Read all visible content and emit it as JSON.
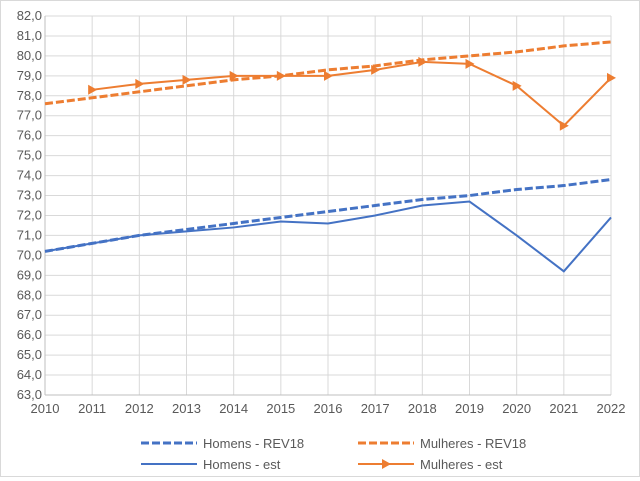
{
  "chart_data": {
    "type": "line",
    "title": "",
    "xlabel": "",
    "ylabel": "",
    "x": [
      2010,
      2011,
      2012,
      2013,
      2014,
      2015,
      2016,
      2017,
      2018,
      2019,
      2020,
      2021,
      2022
    ],
    "x_tick_labels": [
      "2010",
      "2011",
      "2012",
      "2013",
      "2014",
      "2015",
      "2016",
      "2017",
      "2018",
      "2019",
      "2020",
      "2021",
      "2022"
    ],
    "ylim": [
      63,
      82
    ],
    "y_tick_labels": [
      "63,0",
      "64,0",
      "65,0",
      "66,0",
      "67,0",
      "68,0",
      "69,0",
      "70,0",
      "71,0",
      "72,0",
      "73,0",
      "74,0",
      "75,0",
      "76,0",
      "77,0",
      "78,0",
      "79,0",
      "80,0",
      "81,0",
      "82,0"
    ],
    "grid": true,
    "legend_position": "bottom",
    "series": [
      {
        "name": "Homens - REV18",
        "color": "#4472c4",
        "style": "dashed",
        "marker": "none",
        "values": [
          70.2,
          70.6,
          71.0,
          71.3,
          71.6,
          71.9,
          72.2,
          72.5,
          72.8,
          73.0,
          73.3,
          73.5,
          73.8
        ]
      },
      {
        "name": "Mulheres - REV18",
        "color": "#ed7d31",
        "style": "dashed",
        "marker": "none",
        "values": [
          77.6,
          77.9,
          78.2,
          78.5,
          78.8,
          79.0,
          79.3,
          79.5,
          79.8,
          80.0,
          80.2,
          80.5,
          80.7
        ]
      },
      {
        "name": "Homens - est",
        "color": "#4472c4",
        "style": "solid",
        "marker": "none",
        "values": [
          70.2,
          70.6,
          71.0,
          71.2,
          71.4,
          71.7,
          71.6,
          72.0,
          72.5,
          72.7,
          71.0,
          69.2,
          71.9
        ]
      },
      {
        "name": "Mulheres - est",
        "color": "#ed7d31",
        "style": "solid",
        "marker": "triangle",
        "values": [
          null,
          78.3,
          78.6,
          78.8,
          79.0,
          79.0,
          79.0,
          79.3,
          79.7,
          79.6,
          78.5,
          76.5,
          78.9
        ]
      }
    ]
  }
}
